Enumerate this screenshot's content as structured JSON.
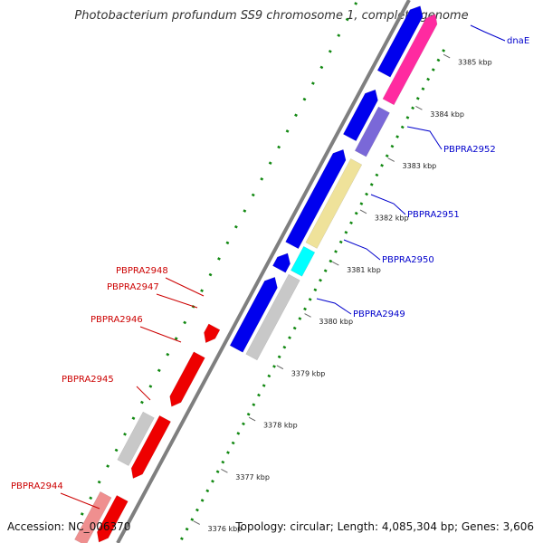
{
  "title": "Photobacterium profundum SS9 chromosome 1, complete genome",
  "footer": {
    "accession": "Accession: NC_006370",
    "summary": "Topology: circular; Length: 4,085,304 bp; Genes: 3,606"
  },
  "ticks": [
    "3385 kbp",
    "3384 kbp",
    "3383 kbp",
    "3382 kbp",
    "3381 kbp",
    "3380 kbp",
    "3379 kbp",
    "3378 kbp",
    "3377 kbp",
    "3376 kbp"
  ],
  "gene_labels_right": [
    "dnaE",
    "PBPRA2952",
    "PBPRA2951",
    "PBPRA2950",
    "PBPRA2949"
  ],
  "gene_labels_left": [
    "PBPRA2948",
    "PBPRA2947",
    "PBPRA2946",
    "PBPRA2945",
    "PBPRA2944"
  ],
  "colors": {
    "backbone": "#7f7f7f",
    "forward_cds": "#0000ee",
    "reverse_cds": "#ee0000",
    "gray_feature": "#c8c8c8",
    "pink_feature": "#ff2aa0",
    "purple_feature": "#7a68d8",
    "yellow_feature": "#efe29a",
    "cyan_feature": "#00ffff",
    "light_red_feature": "#ef8f8f",
    "dot_track": "#118811",
    "right_label": "#0000cc",
    "left_label": "#cc0000"
  }
}
